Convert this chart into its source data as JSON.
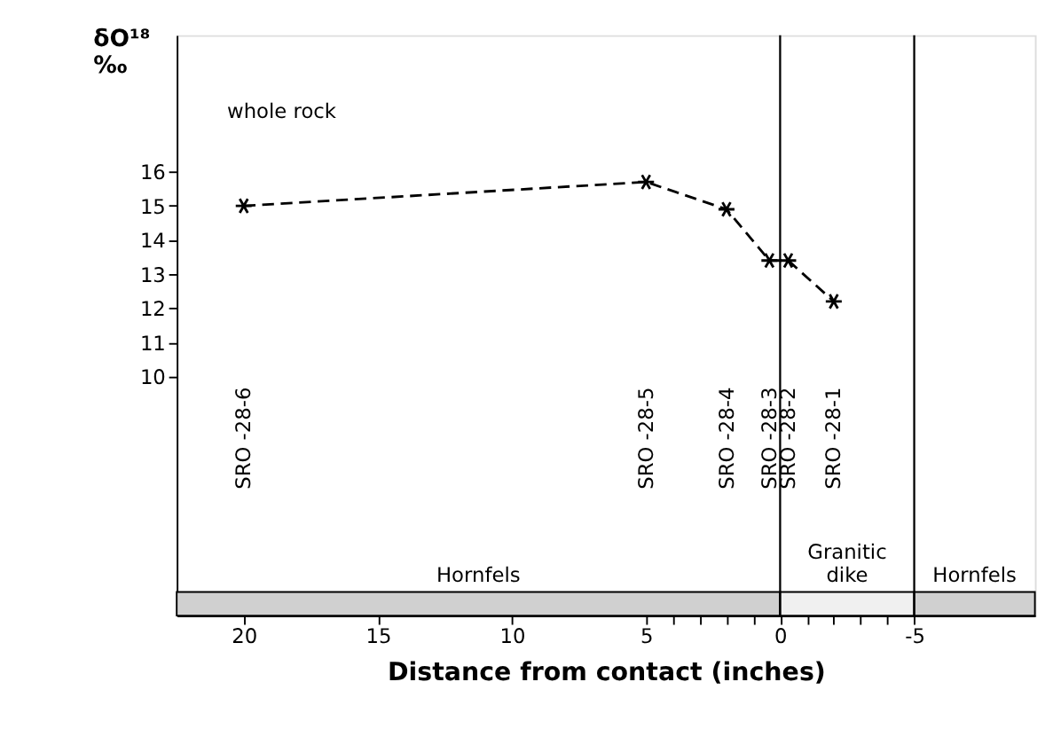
{
  "chart_data": {
    "type": "line",
    "xlabel": "Distance from contact (inches)",
    "ylabel": "δO¹⁸ ‰",
    "x": [
      20,
      5,
      2,
      0.4,
      -0.3,
      -2
    ],
    "series": [
      {
        "color": "#000000",
        "values": [
          15.0,
          15.7,
          14.9,
          13.4,
          13.4,
          12.2
        ]
      }
    ],
    "xlim": [
      22.5,
      -9.5
    ],
    "ylim": [
      3,
      20
    ],
    "xticks": [
      20,
      15,
      10,
      5,
      {
        "value": 4,
        "label": null
      },
      {
        "value": 3,
        "label": null
      },
      {
        "value": 2,
        "label": null
      },
      {
        "value": 1,
        "label": null
      },
      0,
      {
        "value": -1,
        "label": null
      },
      {
        "value": -2,
        "label": null
      },
      {
        "value": -3,
        "label": null
      },
      {
        "value": -4,
        "label": null
      },
      -5
    ],
    "yticks": [
      10,
      11,
      12,
      13,
      14,
      15,
      16
    ],
    "marker": "cross",
    "line_style": "dashed",
    "grid": false,
    "ref_lines": [
      {
        "axis": "x",
        "value": 0,
        "label": null
      },
      {
        "axis": "x",
        "value": -5,
        "label": null
      }
    ],
    "bands": [
      {
        "axis": "x",
        "from": 22.5,
        "to": 0,
        "label": "Hornfels",
        "color": "#d0d0d0"
      },
      {
        "axis": "x",
        "from": 0,
        "to": -5,
        "label": "Granitic dike",
        "color": "#f0f0f0"
      },
      {
        "axis": "x",
        "from": -5,
        "to": -9.5,
        "label": "Hornfels",
        "color": "#d0d0d0"
      }
    ],
    "annotations": [
      "whole rock",
      "SRO -28-6",
      "SRO -28-5",
      "SRO -28-4",
      "SRO -28-3",
      "SRO -28-2",
      "SRO -28-1"
    ]
  }
}
